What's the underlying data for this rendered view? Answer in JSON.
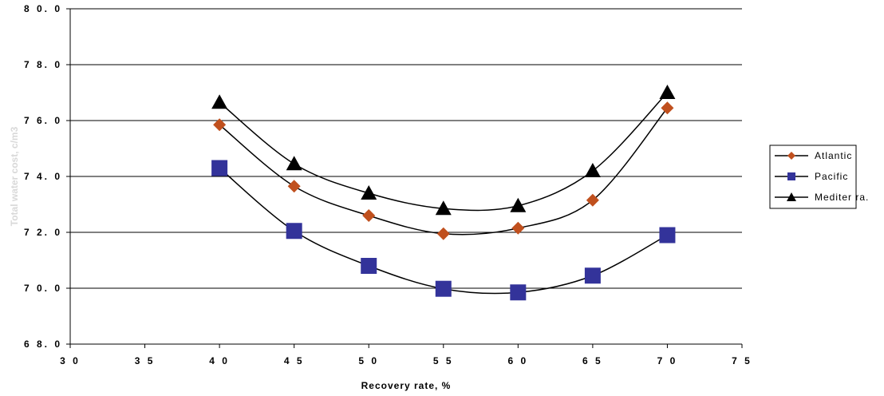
{
  "chart_data": {
    "type": "line",
    "title": "",
    "xlabel": "Recovery rate, %",
    "ylabel": "Total water cost, c/m3",
    "x_ticks": [
      "3 0",
      "3 5",
      "4 0",
      "4 5",
      "5 0",
      "5 5",
      "6 0",
      "6 5",
      "7 0",
      "7 5"
    ],
    "y_ticks": [
      "6 8. 0",
      "7 0. 0",
      "7 2. 0",
      "7 4. 0",
      "7 6. 0",
      "7 8. 0",
      "8 0. 0"
    ],
    "xlim": [
      30,
      75
    ],
    "ylim": [
      68,
      80
    ],
    "grid": "horizontal",
    "legend_position": "right",
    "x": [
      40,
      45,
      50,
      55,
      60,
      65,
      70
    ],
    "series": [
      {
        "name": "Atlantic",
        "marker": "diamond",
        "color": "#c0501e",
        "values": [
          75.85,
          73.65,
          72.6,
          71.95,
          72.15,
          73.15,
          76.45
        ]
      },
      {
        "name": "Pacific",
        "marker": "square",
        "color": "#33339a",
        "values": [
          74.3,
          72.05,
          70.8,
          69.98,
          69.85,
          70.45,
          71.9
        ]
      },
      {
        "name": "Mediter ra.",
        "marker": "triangle",
        "color": "#000000",
        "values": [
          76.65,
          74.45,
          73.4,
          72.85,
          72.95,
          74.2,
          77.0
        ]
      }
    ]
  }
}
